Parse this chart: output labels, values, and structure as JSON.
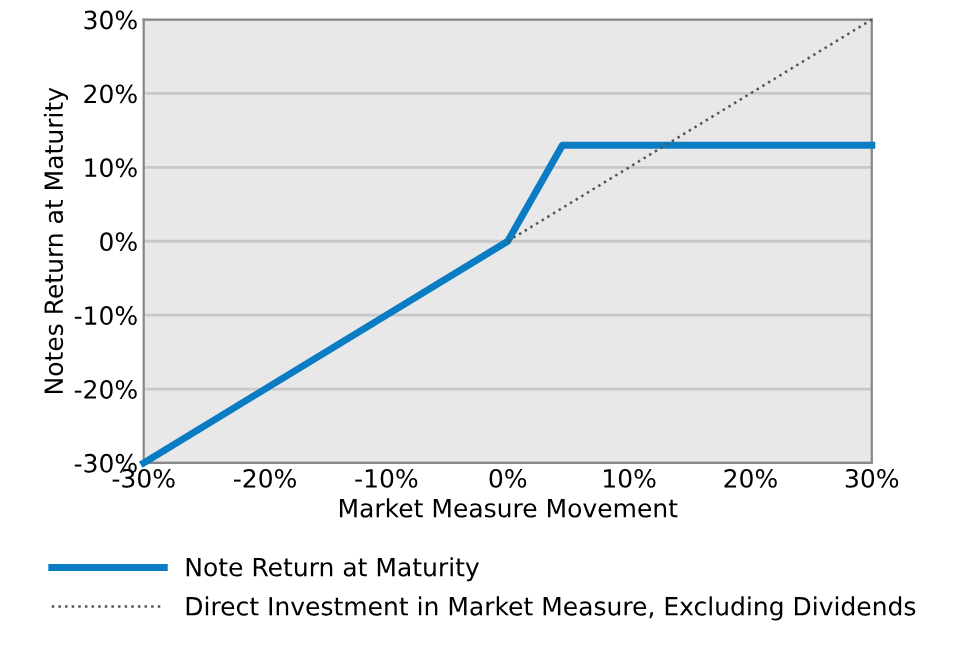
{
  "chart_data": {
    "type": "line",
    "xlabel": "Market Measure Movement",
    "ylabel": "Notes Return at Maturity",
    "x": [
      -30,
      0,
      4.5,
      30
    ],
    "series": [
      {
        "name": "Note Return at Maturity",
        "color": "#0a7cc4",
        "values": [
          -30,
          0,
          13,
          13
        ],
        "line_style": "solid"
      },
      {
        "name": "Direct Investment in Market Measure, Excluding Dividends",
        "color": "#555555",
        "x": [
          0,
          30
        ],
        "values": [
          0,
          30
        ],
        "line_style": "dotted"
      }
    ],
    "xlim": [
      -30,
      30
    ],
    "ylim": [
      -30,
      30
    ],
    "xticks": [
      {
        "value": -30,
        "label": "-30%"
      },
      {
        "value": -20,
        "label": "-20%"
      },
      {
        "value": -10,
        "label": "-10%"
      },
      {
        "value": 0,
        "label": "0%"
      },
      {
        "value": 10,
        "label": "10%"
      },
      {
        "value": 20,
        "label": "20%"
      },
      {
        "value": 30,
        "label": "30%"
      }
    ],
    "yticks": [
      {
        "value": -30,
        "label": "-30%"
      },
      {
        "value": -20,
        "label": "-20%"
      },
      {
        "value": -10,
        "label": "-10%"
      },
      {
        "value": 0,
        "label": "0%"
      },
      {
        "value": 10,
        "label": "10%"
      },
      {
        "value": 20,
        "label": "20%"
      },
      {
        "value": 30,
        "label": "30%"
      }
    ],
    "grid": "y",
    "legend": "bottom"
  }
}
